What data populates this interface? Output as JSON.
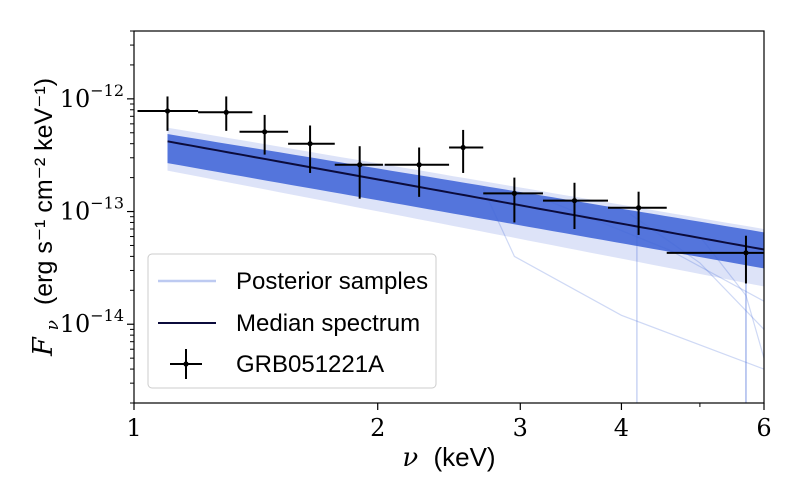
{
  "chart_data": {
    "type": "scatter",
    "xscale": "log",
    "yscale": "log",
    "xlim": [
      1,
      6
    ],
    "ylim": [
      2e-15,
      4e-12
    ],
    "xlabel_symbol": "ν",
    "xlabel_unit": "(keV)",
    "ylabel_symbol": "F",
    "ylabel_subscript": "ν",
    "ylabel_unit": "(erg s⁻¹ cm⁻² keV⁻¹)",
    "x_ticks": [
      {
        "value": 1,
        "label": "1"
      },
      {
        "value": 2,
        "label": "2"
      },
      {
        "value": 3,
        "label": "3"
      },
      {
        "value": 4,
        "label": "4"
      },
      {
        "value": 6,
        "label": "6"
      }
    ],
    "y_ticks": [
      {
        "value": 1e-12,
        "base": "10",
        "exp": "−12"
      },
      {
        "value": 1e-13,
        "base": "10",
        "exp": "−13"
      },
      {
        "value": 1e-14,
        "base": "10",
        "exp": "−14"
      }
    ],
    "legend": [
      {
        "label": "Posterior samples",
        "kind": "band"
      },
      {
        "label": "Median spectrum",
        "kind": "line"
      },
      {
        "label": "GRB051221A",
        "kind": "errorbar"
      }
    ],
    "colors": {
      "band": "#4166d8",
      "median": "#0b0b3b",
      "data": "#000000"
    },
    "median_spectrum": {
      "x_range": [
        1.1,
        6
      ],
      "y_at_start": 4.2e-13,
      "y_at_end": 4.6e-14
    },
    "posterior_band": {
      "lower_factor_start": 0.64,
      "upper_factor_start": 1.16,
      "lower_factor_end": 0.68,
      "upper_factor_end": 1.42
    },
    "series": [
      {
        "name": "GRB051221A",
        "points": [
          {
            "x": 1.1,
            "xlo": 1.01,
            "xhi": 1.2,
            "y": 7.8e-13,
            "ylo": 5.2e-13,
            "yhi": 1.05e-12
          },
          {
            "x": 1.3,
            "xlo": 1.2,
            "xhi": 1.4,
            "y": 7.6e-13,
            "ylo": 5.2e-13,
            "yhi": 1.05e-12
          },
          {
            "x": 1.45,
            "xlo": 1.35,
            "xhi": 1.55,
            "y": 5.1e-13,
            "ylo": 3.2e-13,
            "yhi": 7.2e-13
          },
          {
            "x": 1.65,
            "xlo": 1.55,
            "xhi": 1.77,
            "y": 4e-13,
            "ylo": 2.2e-13,
            "yhi": 5.8e-13
          },
          {
            "x": 1.9,
            "xlo": 1.77,
            "xhi": 2.03,
            "y": 2.6e-13,
            "ylo": 1.3e-13,
            "yhi": 3.8e-13
          },
          {
            "x": 2.25,
            "xlo": 2.04,
            "xhi": 2.45,
            "y": 2.6e-13,
            "ylo": 1.35e-13,
            "yhi": 3.7e-13
          },
          {
            "x": 2.55,
            "xlo": 2.45,
            "xhi": 2.7,
            "y": 3.7e-13,
            "ylo": 2.2e-13,
            "yhi": 5.3e-13
          },
          {
            "x": 2.95,
            "xlo": 2.7,
            "xhi": 3.2,
            "y": 1.45e-13,
            "ylo": 8e-14,
            "yhi": 2e-13
          },
          {
            "x": 3.5,
            "xlo": 3.2,
            "xhi": 3.85,
            "y": 1.25e-13,
            "ylo": 7e-14,
            "yhi": 1.8e-13
          },
          {
            "x": 4.2,
            "xlo": 3.85,
            "xhi": 4.55,
            "y": 1.08e-13,
            "ylo": 6.2e-14,
            "yhi": 1.5e-13
          },
          {
            "x": 5.7,
            "xlo": 4.55,
            "xhi": 6.0,
            "y": 4.3e-14,
            "ylo": 2.3e-14,
            "yhi": 6.1e-14
          }
        ]
      }
    ]
  }
}
